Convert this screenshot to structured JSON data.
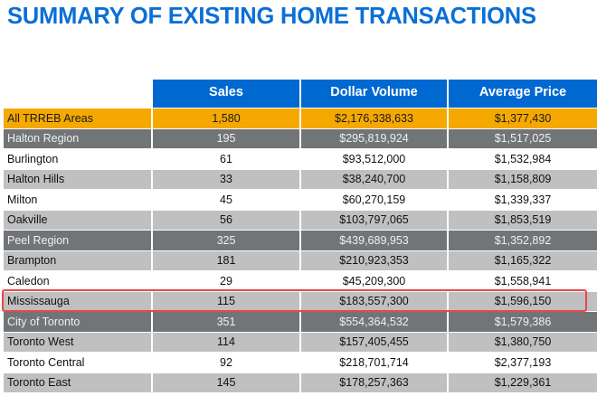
{
  "title": "SUMMARY OF EXISTING HOME TRANSACTIONS",
  "colors": {
    "title": "#0a6fd6",
    "header": "#0068d1",
    "total_row": "#f5a800",
    "region_row": "#727578",
    "light_row": "#bfc0bf",
    "highlight_border": "#e8474a"
  },
  "table": {
    "headers": [
      "",
      "Sales",
      "Dollar Volume",
      "Average Price"
    ],
    "rows": [
      {
        "type": "total",
        "area": "All TRREB Areas",
        "sales": "1,580",
        "dollar_volume": "$2,176,338,633",
        "average_price": "$1,377,430"
      },
      {
        "type": "region",
        "area": "Halton Region",
        "sales": "195",
        "dollar_volume": "$295,819,924",
        "average_price": "$1,517,025"
      },
      {
        "type": "white",
        "area": "Burlington",
        "sales": "61",
        "dollar_volume": "$93,512,000",
        "average_price": "$1,532,984"
      },
      {
        "type": "light",
        "area": "Halton Hills",
        "sales": "33",
        "dollar_volume": "$38,240,700",
        "average_price": "$1,158,809"
      },
      {
        "type": "white",
        "area": "Milton",
        "sales": "45",
        "dollar_volume": "$60,270,159",
        "average_price": "$1,339,337"
      },
      {
        "type": "light",
        "area": "Oakville",
        "sales": "56",
        "dollar_volume": "$103,797,065",
        "average_price": "$1,853,519"
      },
      {
        "type": "region",
        "area": "Peel Region",
        "sales": "325",
        "dollar_volume": "$439,689,953",
        "average_price": "$1,352,892"
      },
      {
        "type": "light",
        "area": "Brampton",
        "sales": "181",
        "dollar_volume": "$210,923,353",
        "average_price": "$1,165,322"
      },
      {
        "type": "white",
        "area": "Caledon",
        "sales": "29",
        "dollar_volume": "$45,209,300",
        "average_price": "$1,558,941"
      },
      {
        "type": "light",
        "area": "Mississauga",
        "sales": "115",
        "dollar_volume": "$183,557,300",
        "average_price": "$1,596,150",
        "highlighted": true
      },
      {
        "type": "region",
        "area": "City of Toronto",
        "sales": "351",
        "dollar_volume": "$554,364,532",
        "average_price": "$1,579,386"
      },
      {
        "type": "light",
        "area": "Toronto West",
        "sales": "114",
        "dollar_volume": "$157,405,455",
        "average_price": "$1,380,750"
      },
      {
        "type": "white",
        "area": "Toronto Central",
        "sales": "92",
        "dollar_volume": "$218,701,714",
        "average_price": "$2,377,193"
      },
      {
        "type": "light",
        "area": "Toronto East",
        "sales": "145",
        "dollar_volume": "$178,257,363",
        "average_price": "$1,229,361"
      }
    ]
  }
}
